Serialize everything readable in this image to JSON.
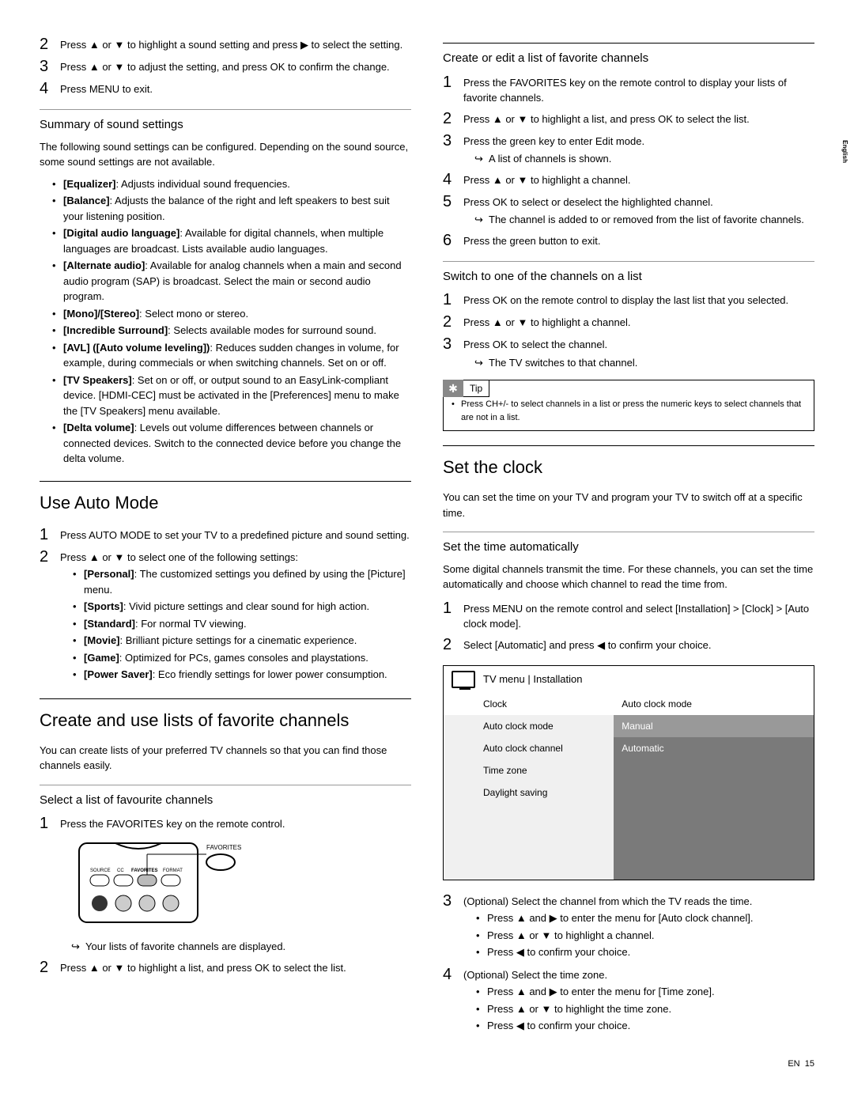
{
  "side_lang": "English",
  "left": {
    "s1": {
      "num": "2",
      "text": "Press ▲ or ▼ to highlight a sound setting and press ▶ to select the setting."
    },
    "s2": {
      "num": "3",
      "text": "Press ▲ or ▼ to adjust the setting, and press OK to confirm the change."
    },
    "s3": {
      "num": "4",
      "text": "Press MENU to exit."
    },
    "h_sound": "Summary of sound settings",
    "sound_intro": "The following sound settings can be configured. Depending on the sound source, some sound settings are not available.",
    "sound": [
      {
        "b": "[Equalizer]",
        "t": ": Adjusts individual sound frequencies."
      },
      {
        "b": "[Balance]",
        "t": ": Adjusts the balance of the right and left speakers to best suit your listening position."
      },
      {
        "b": "[Digital audio language]",
        "t": ": Available for digital channels, when multiple languages are broadcast. Lists available audio languages."
      },
      {
        "b": "[Alternate audio]",
        "t": ": Available for analog channels when a main and second audio program (SAP) is broadcast. Select the main or second audio program."
      },
      {
        "b": "[Mono]/[Stereo]",
        "t": ": Select mono or stereo."
      },
      {
        "b": "[Incredible Surround]",
        "t": ": Selects available modes for surround sound."
      },
      {
        "b": "[AVL] ([Auto volume leveling])",
        "t": ": Reduces sudden changes in volume, for example, during commecials or when switching channels. Set on or off."
      },
      {
        "b": "[TV Speakers]",
        "t": ": Set on or off, or output sound to an EasyLink-compliant device. [HDMI-CEC] must be activated in the [Preferences] menu to make the [TV Speakers] menu available."
      },
      {
        "b": "[Delta volume]",
        "t": ": Levels out volume differences between channels or connected devices. Switch to the connected device before you change the delta volume."
      }
    ],
    "h_auto": "Use Auto Mode",
    "auto": {
      "s1": {
        "n": "1",
        "t": "Press AUTO MODE to set your TV to a predefined picture and sound setting."
      },
      "s2": {
        "n": "2",
        "t": "Press ▲ or ▼ to select one of the following settings:"
      },
      "opts": [
        {
          "b": "[Personal]",
          "t": ": The customized settings you defined by using the [Picture] menu."
        },
        {
          "b": "[Sports]",
          "t": ": Vivid picture settings and clear sound for high action."
        },
        {
          "b": "[Standard]",
          "t": ": For normal TV viewing."
        },
        {
          "b": "[Movie]",
          "t": ": Brilliant picture settings for a cinematic experience."
        },
        {
          "b": "[Game]",
          "t": ": Optimized for PCs, games consoles and playstations."
        },
        {
          "b": "[Power Saver]",
          "t": ": Eco friendly settings for lower power consumption."
        }
      ]
    },
    "h_fav": "Create and use lists of favorite channels",
    "fav_intro": "You can create lists of your preferred TV channels so that you can find those channels easily.",
    "h_selfav": "Select a list of favourite channels",
    "selfav": {
      "s1": {
        "n": "1",
        "t": "Press the FAVORITES key on the remote control."
      },
      "sub": "Your lists of favorite channels are displayed.",
      "s2": {
        "n": "2",
        "t": "Press ▲ or ▼ to highlight a list, and press OK to select the list."
      }
    },
    "remote": {
      "fav": "FAVORITES",
      "src": "SOURCE",
      "cc": "CC",
      "f2": "FAVORITES",
      "fmt": "FORMAT"
    }
  },
  "right": {
    "h_create": "Create or edit a list of favorite channels",
    "create": [
      {
        "n": "1",
        "t": "Press the FAVORITES key on the remote control to display your lists of favorite channels."
      },
      {
        "n": "2",
        "t": "Press ▲ or ▼ to highlight a list, and press OK to select the list."
      },
      {
        "n": "3",
        "t": "Press the green key to enter Edit mode.",
        "sub": "A list of channels is shown."
      },
      {
        "n": "4",
        "t": "Press ▲ or ▼ to highlight a channel."
      },
      {
        "n": "5",
        "t": "Press OK to select or deselect the highlighted channel.",
        "sub": "The channel is added to or removed from the list of favorite channels."
      },
      {
        "n": "6",
        "t": "Press the green button to exit."
      }
    ],
    "h_switch": "Switch to one of the channels on a list",
    "switch": [
      {
        "n": "1",
        "t": "Press OK on the remote control to display the last list that you selected."
      },
      {
        "n": "2",
        "t": "Press ▲ or ▼ to highlight a channel."
      },
      {
        "n": "3",
        "t": "Press OK to select the channel.",
        "sub": "The TV switches to that channel."
      }
    ],
    "tip_lbl": "Tip",
    "tip_text": "Press CH+/- to select channels in a list or press the numeric keys to select channels that are not in a list.",
    "h_clock": "Set the clock",
    "clock_intro": "You can set the time on your TV and program your TV to switch off at a specific time.",
    "h_auto_time": "Set the time automatically",
    "auto_intro": "Some digital channels transmit the time. For these channels, you can set the time automatically and choose which channel to read the time from.",
    "auto_steps": [
      {
        "n": "1",
        "t": "Press MENU on the remote control and select [Installation] > [Clock] > [Auto clock mode]."
      },
      {
        "n": "2",
        "t": "Select [Automatic] and press ◀ to confirm your choice."
      }
    ],
    "menu": {
      "title": "TV menu | Installation",
      "r1a": "Clock",
      "r1b": "Auto clock mode",
      "r2a": "Auto clock mode",
      "r2b": "Manual",
      "r3a": "Auto clock channel",
      "r3b": "Automatic",
      "r4a": "Time zone",
      "r5a": "Daylight saving"
    },
    "post": [
      {
        "n": "3",
        "t": "(Optional) Select the channel from which the TV reads the time.",
        "bul": [
          "Press ▲ and ▶ to enter the menu for [Auto clock channel].",
          "Press ▲ or ▼ to highlight a channel.",
          "Press ◀ to confirm your choice."
        ]
      },
      {
        "n": "4",
        "t": "(Optional) Select the time zone.",
        "bul": [
          "Press ▲ and ▶ to enter the menu for [Time zone].",
          "Press ▲ or ▼ to highlight the time zone.",
          "Press ◀ to confirm your choice."
        ]
      }
    ]
  },
  "footer": {
    "lang": "EN",
    "pg": "15"
  }
}
